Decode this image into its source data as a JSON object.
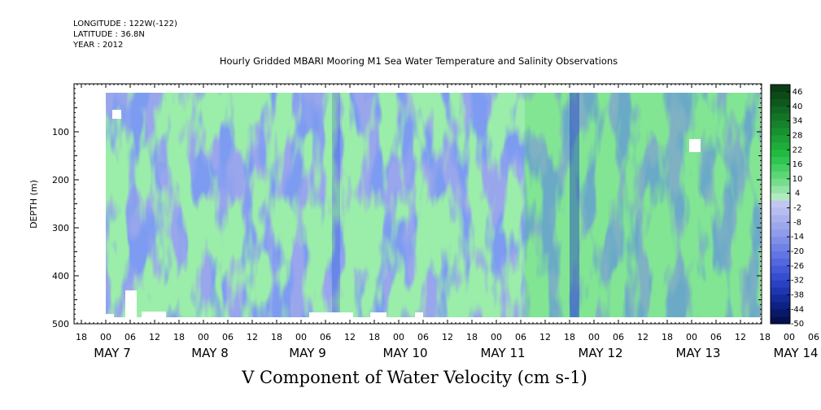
{
  "header": {
    "longitude": "LONGITUDE : 122W(-122)",
    "latitude": "LATITUDE : 36.8N",
    "year": "YEAR : 2012"
  },
  "chart_data": {
    "type": "heatmap",
    "title": "Hourly Gridded MBARI Mooring M1 Sea Water Temperature and Salinity Observations",
    "subtitle": "V Component of Water Velocity (cm s-1)",
    "ylabel": "DEPTH (m)",
    "ylim": [
      500,
      0
    ],
    "y_ticks": [
      100,
      200,
      300,
      400,
      500
    ],
    "x_start_hour": "18",
    "x_hour_ticks": [
      "18",
      "00",
      "06",
      "12",
      "18",
      "00",
      "06",
      "12",
      "18",
      "00",
      "06",
      "12",
      "18",
      "00",
      "06",
      "12",
      "18",
      "00",
      "06",
      "12",
      "18",
      "00",
      "06",
      "12",
      "18",
      "00",
      "06",
      "12",
      "18",
      "00",
      "06",
      "12"
    ],
    "x_day_labels": [
      "MAY 7",
      "MAY 8",
      "MAY 9",
      "MAY 10",
      "MAY 11",
      "MAY 12",
      "MAY 13",
      "MAY 14"
    ],
    "colorbar": {
      "labels": [
        "46",
        "40",
        "34",
        "28",
        "22",
        "16",
        "10",
        "4",
        "-2",
        "-8",
        "-14",
        "-20",
        "-26",
        "-32",
        "-38",
        "-44",
        "-50"
      ],
      "levels": [
        46,
        43,
        40,
        37,
        34,
        31,
        28,
        25,
        22,
        19,
        16,
        13,
        10,
        7,
        4,
        1,
        -2,
        -5,
        -8,
        -11,
        -14,
        -17,
        -20,
        -23,
        -26,
        -29,
        -32,
        -35,
        -38,
        -41,
        -44,
        -47,
        -50
      ],
      "colors": [
        "#0a3d14",
        "#0c4a18",
        "#0e581d",
        "#116622",
        "#137427",
        "#16822c",
        "#189131",
        "#1b9f36",
        "#1ead3b",
        "#21bb40",
        "#2fc550",
        "#45cf63",
        "#5dd677",
        "#77dd8d",
        "#93e4a6",
        "#b0ebc0",
        "#c3c6f2",
        "#b8bdf0",
        "#aab2ee",
        "#9ca7ec",
        "#8e9cea",
        "#7f8fe8",
        "#7182e6",
        "#6275e4",
        "#5367e0",
        "#445ad8",
        "#364dd0",
        "#2a41c4",
        "#1f36b2",
        "#152b9c",
        "#0d2184",
        "#08186a",
        "#041050"
      ]
    }
  }
}
